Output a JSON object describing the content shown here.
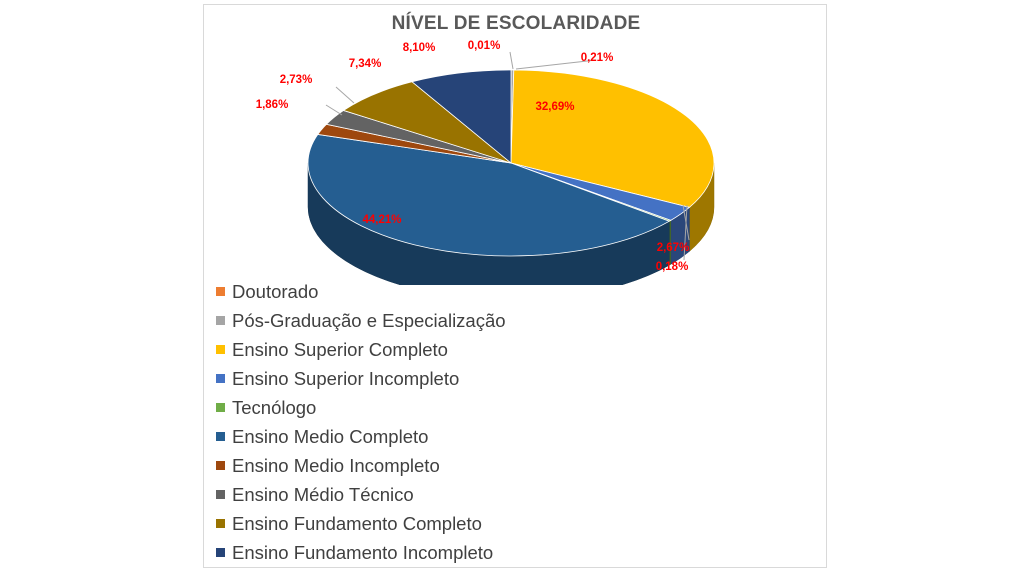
{
  "chart_data": {
    "type": "pie",
    "title": "NÍVEL DE ESCOLARIDADE",
    "legend_position": "bottom-left",
    "categories": [
      "Doutorado",
      "Pós-Graduação e Especialização",
      "Ensino Superior Completo",
      "Ensino Superior Incompleto",
      "Tecnólogo",
      "Ensino Medio Completo",
      "Ensino Medio Incompleto",
      "Ensino Médio Técnico",
      "Ensino Fundamento Completo",
      "Ensino Fundamento Incompleto"
    ],
    "values": [
      0.01,
      0.21,
      32.69,
      2.67,
      0.18,
      44.21,
      1.86,
      2.73,
      7.34,
      8.1
    ],
    "labels": [
      "0,01%",
      "0,21%",
      "32,69%",
      "2,67%",
      "0,18%",
      "44,21%",
      "1,86%",
      "2,73%",
      "7,34%",
      "8,10%"
    ],
    "colors": [
      "#ed7d31",
      "#a5a5a5",
      "#ffc000",
      "#4472c4",
      "#70ad47",
      "#255e91",
      "#9e480e",
      "#636363",
      "#997300",
      "#264478"
    ],
    "label_color": "#ff0000"
  }
}
